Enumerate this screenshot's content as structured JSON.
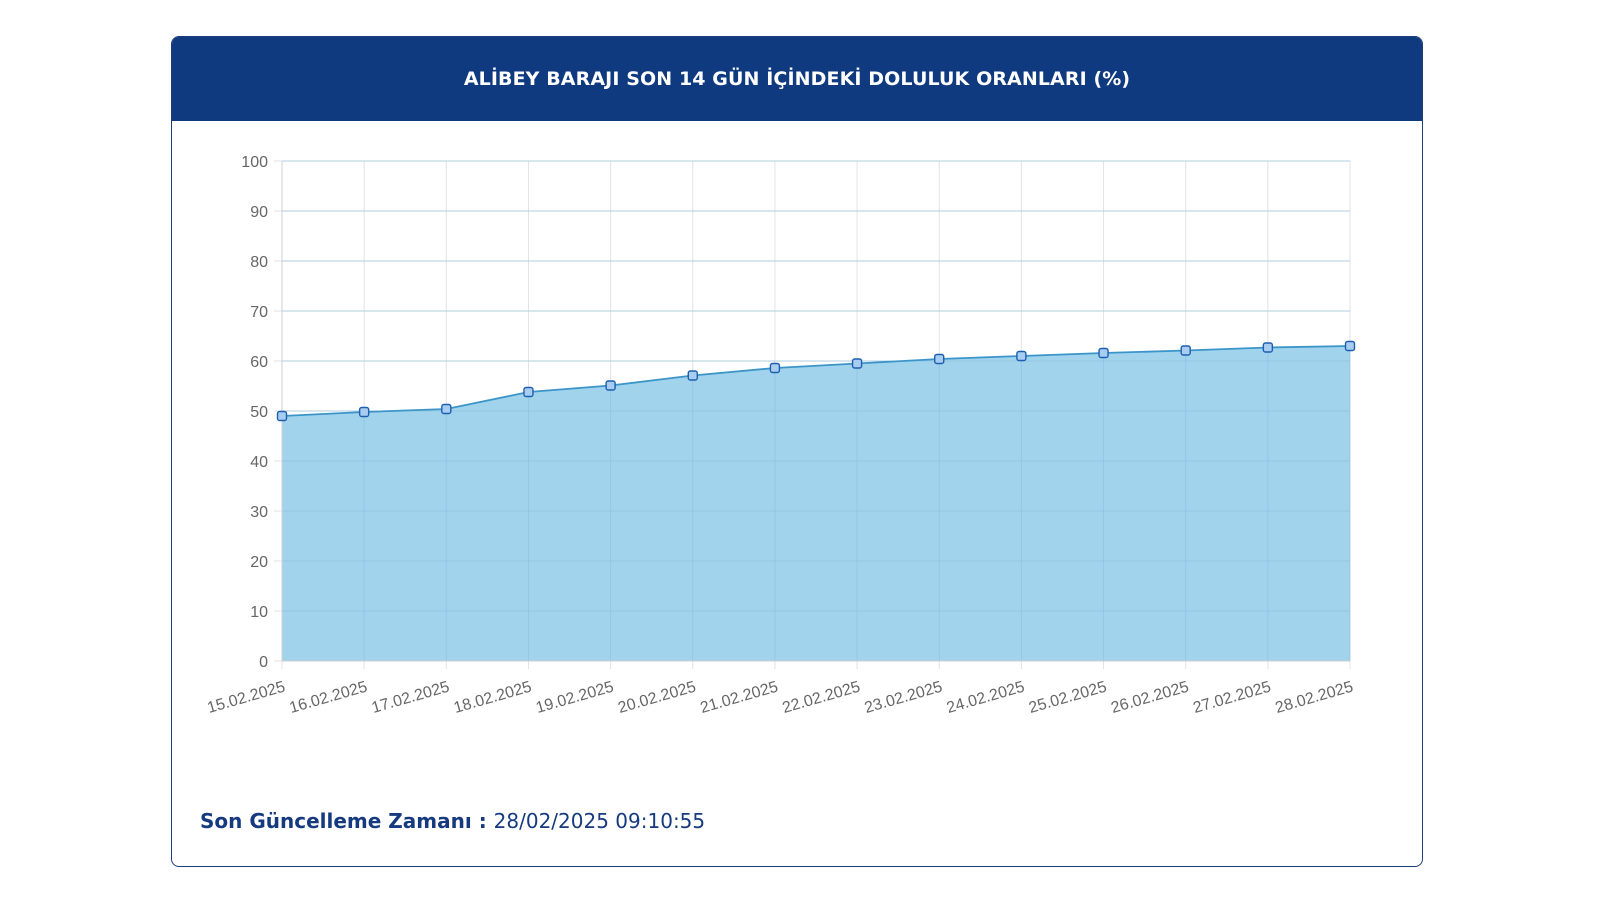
{
  "header": {
    "title": "ALİBEY BARAJI SON 14 GÜN İÇİNDEKİ DOLULUK ORANLARI (%)"
  },
  "colors": {
    "header_bg": "#0f3a80",
    "area_fill": "#9dd1ec",
    "line": "#3b95c9",
    "point_fill": "#a9cdf0",
    "point_stroke": "#1c5fb0",
    "footer_text": "#163a7f"
  },
  "chart_data": {
    "type": "area",
    "title": "ALİBEY BARAJI SON 14 GÜN İÇİNDEKİ DOLULUK ORANLARI (%)",
    "xlabel": "",
    "ylabel": "",
    "categories": [
      "15.02.2025",
      "16.02.2025",
      "17.02.2025",
      "18.02.2025",
      "19.02.2025",
      "20.02.2025",
      "21.02.2025",
      "22.02.2025",
      "23.02.2025",
      "24.02.2025",
      "25.02.2025",
      "26.02.2025",
      "27.02.2025",
      "28.02.2025"
    ],
    "values": [
      49.0,
      49.8,
      50.4,
      53.8,
      55.1,
      57.1,
      58.6,
      59.5,
      60.4,
      61.0,
      61.6,
      62.1,
      62.7,
      63.0
    ],
    "ylim": [
      0,
      100
    ],
    "yticks": [
      0,
      10,
      20,
      30,
      40,
      50,
      60,
      70,
      80,
      90,
      100
    ],
    "grid": true,
    "legend": "none"
  },
  "footer": {
    "label": "Son Güncelleme Zamanı",
    "separator": " : ",
    "value": "28/02/2025 09:10:55"
  }
}
